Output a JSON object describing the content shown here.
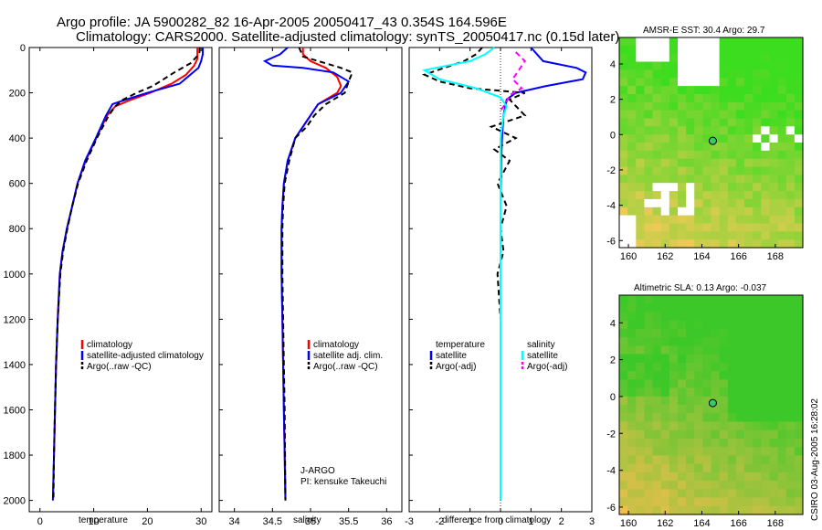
{
  "header": {
    "line1": "Argo profile: JA 5900282_82 16-Apr-2005 20050417_43 0.354S 164.596E",
    "line2": "Climatology: CARS2000. Satellite-adjusted climatology: synTS_20050417.nc (0.15d later)"
  },
  "side_stamp": "CSIRO 03-Aug-2005 16:28:02",
  "colors": {
    "climatology": "#ff0000",
    "satellite": "#0000ff",
    "argo": "#000000",
    "cyan": "#00ffff",
    "magenta": "#ff00ff"
  },
  "chart_data": [
    {
      "id": "temperature",
      "type": "line",
      "xlabel": "temperature",
      "xlim": [
        -2,
        32
      ],
      "ylim": [
        2050,
        0
      ],
      "x_ticks": [
        0,
        10,
        20,
        30
      ],
      "x_tick_labels": [
        "0",
        "10",
        "20",
        "30"
      ],
      "y_ticks": [
        0,
        200,
        400,
        600,
        800,
        1000,
        1200,
        1400,
        1600,
        1800,
        2000
      ],
      "y_tick_labels": [
        "0",
        "200",
        "400",
        "600",
        "800",
        "1000",
        "1200",
        "1400",
        "1600",
        "1800",
        "2000"
      ],
      "legend": [
        "climatology",
        "satellite-adjusted climatology",
        "Argo(..raw -QC)"
      ],
      "series": [
        {
          "name": "climatology",
          "color": "#ff0000",
          "dash": false,
          "x": [
            29.3,
            29.3,
            28.7,
            27.2,
            24.5,
            20.5,
            17.0,
            14.0,
            12.5,
            10.5,
            8.5,
            7.0,
            6.0,
            5.0,
            4.2,
            3.7,
            3.3,
            3.0,
            2.8,
            2.6,
            2.5,
            2.4
          ],
          "y": [
            0,
            50,
            80,
            120,
            160,
            200,
            230,
            260,
            300,
            400,
            500,
            600,
            700,
            800,
            900,
            1000,
            1200,
            1400,
            1600,
            1800,
            1900,
            2000
          ]
        },
        {
          "name": "satellite-adjusted climatology",
          "color": "#0000ff",
          "dash": false,
          "x": [
            30.3,
            30.3,
            30.0,
            29.5,
            26.0,
            20.0,
            16.0,
            13.5,
            12.3,
            10.4,
            8.4,
            7.0,
            6.0,
            5.0,
            4.2,
            3.7,
            3.3,
            3.0,
            2.8,
            2.6,
            2.5,
            2.4
          ],
          "y": [
            0,
            30,
            60,
            90,
            160,
            200,
            230,
            250,
            300,
            400,
            500,
            600,
            700,
            800,
            900,
            1000,
            1200,
            1400,
            1600,
            1800,
            1900,
            2000
          ]
        },
        {
          "name": "Argo(..raw -QC)",
          "color": "#000000",
          "dash": true,
          "x": [
            29.7,
            29.7,
            29.2,
            28.0,
            25.0,
            23.0,
            21.0,
            18.0,
            15.5,
            14.0,
            12.8,
            10.6,
            8.7,
            7.1,
            6.0,
            5.1,
            4.3,
            3.8,
            3.3,
            3.0,
            2.8,
            2.6,
            2.5
          ],
          "y": [
            0,
            20,
            40,
            70,
            110,
            140,
            170,
            200,
            230,
            260,
            300,
            400,
            500,
            600,
            700,
            800,
            900,
            1000,
            1200,
            1400,
            1600,
            1800,
            2000
          ]
        }
      ]
    },
    {
      "id": "salinity",
      "type": "line",
      "xlabel": "salinity",
      "xlim": [
        33.8,
        36.2
      ],
      "ylim": [
        2050,
        0
      ],
      "x_ticks": [
        34,
        34.5,
        35,
        35.5,
        36
      ],
      "x_tick_labels": [
        "34",
        "34.5",
        "35",
        "35.5",
        "36"
      ],
      "legend": [
        "climatology",
        "satellite adj. clim.",
        "Argo(..raw -QC)"
      ],
      "annotation": [
        "J-ARGO",
        "PI: kensuke Takeuchi"
      ],
      "series": [
        {
          "name": "climatology",
          "color": "#ff0000",
          "dash": false,
          "x": [
            34.9,
            34.9,
            35.0,
            35.2,
            35.35,
            35.4,
            35.35,
            35.1,
            35.0,
            34.9,
            34.8,
            34.7,
            34.65,
            34.63,
            34.62,
            34.62,
            34.63,
            34.64,
            34.65,
            34.66,
            34.67
          ],
          "y": [
            0,
            30,
            60,
            90,
            130,
            170,
            200,
            250,
            300,
            350,
            400,
            500,
            600,
            700,
            800,
            1000,
            1200,
            1400,
            1600,
            1800,
            2000
          ]
        },
        {
          "name": "satellite adj. clim.",
          "color": "#0000ff",
          "dash": false,
          "x": [
            34.7,
            34.6,
            34.4,
            34.5,
            34.9,
            35.3,
            35.5,
            35.4,
            35.1,
            35.0,
            34.9,
            34.8,
            34.7,
            34.65,
            34.63,
            34.62,
            34.62,
            34.63,
            34.64,
            34.65,
            34.66,
            34.67
          ],
          "y": [
            0,
            30,
            60,
            80,
            90,
            110,
            150,
            200,
            250,
            300,
            350,
            400,
            500,
            600,
            700,
            800,
            1000,
            1200,
            1400,
            1600,
            1800,
            2000
          ]
        },
        {
          "name": "Argo(..raw -QC)",
          "color": "#000000",
          "dash": true,
          "x": [
            34.85,
            34.9,
            35.2,
            35.4,
            35.55,
            35.5,
            35.45,
            35.2,
            35.05,
            34.95,
            34.8,
            34.72,
            34.66,
            34.64,
            34.63,
            34.63,
            34.64,
            34.65,
            34.66,
            34.67
          ],
          "y": [
            0,
            40,
            70,
            90,
            110,
            150,
            200,
            250,
            300,
            350,
            400,
            500,
            600,
            700,
            800,
            1000,
            1200,
            1400,
            1600,
            2000
          ]
        }
      ]
    },
    {
      "id": "difference",
      "type": "line",
      "xlabel": "difference from climatology",
      "xlim": [
        -3,
        3
      ],
      "ylim": [
        2050,
        0
      ],
      "x_ticks": [
        -3,
        -2,
        -1,
        0,
        1,
        2,
        3
      ],
      "x_tick_labels": [
        "-3",
        "-2",
        "-1",
        "0",
        "1",
        "2",
        "3"
      ],
      "legend_left": [
        "temperature",
        "satellite",
        "Argo(-adj)"
      ],
      "legend_right": [
        "salinity",
        "satellite",
        "Argo(-adj)"
      ],
      "series": [
        {
          "name": "temperature satellite",
          "color": "#0000ff",
          "dash": false,
          "x": [
            1.0,
            1.2,
            1.4,
            2.5,
            2.8,
            2.7,
            1.5,
            0.5,
            0.2,
            0.1,
            0.05,
            0.02,
            0.0,
            0.0,
            0.0,
            0.0,
            0.0,
            0.0
          ],
          "y": [
            0,
            30,
            60,
            90,
            110,
            140,
            170,
            200,
            230,
            300,
            400,
            500,
            700,
            900,
            1200,
            1500,
            1800,
            2000
          ]
        },
        {
          "name": "temperature Argo(-adj)",
          "color": "#000000",
          "dash": true,
          "x": [
            -0.6,
            -0.8,
            -1.2,
            -2.5,
            -2.0,
            -1.0,
            0.8,
            0.3,
            0.8,
            -0.3,
            0.5,
            -0.2,
            0.3,
            -0.1,
            0.2,
            0.0,
            0.1,
            -0.1,
            0.0,
            0.0,
            0.0,
            0.0
          ],
          "y": [
            0,
            30,
            60,
            120,
            150,
            180,
            200,
            230,
            300,
            350,
            400,
            450,
            500,
            600,
            700,
            800,
            900,
            1000,
            1200,
            1500,
            1800,
            2000
          ]
        },
        {
          "name": "salinity satellite",
          "color": "#00ffff",
          "dash": false,
          "x": [
            -0.2,
            -0.5,
            -1.0,
            -2.5,
            -2.0,
            -0.8,
            0.0,
            0.2,
            0.1,
            0.0,
            0.0,
            0.0,
            0.0,
            0.0,
            0.0
          ],
          "y": [
            0,
            30,
            60,
            100,
            140,
            180,
            220,
            260,
            300,
            400,
            600,
            900,
            1200,
            1600,
            2000
          ]
        },
        {
          "name": "salinity Argo(-adj)",
          "color": "#ff00ff",
          "dash": true,
          "x": [
            0.5,
            0.8,
            0.6,
            0.4,
            0.7,
            0.3,
            0.2,
            0.1,
            0.0
          ],
          "y": [
            20,
            60,
            100,
            140,
            180,
            210,
            240,
            260,
            280
          ]
        }
      ]
    },
    {
      "id": "sst_map",
      "type": "heatmap",
      "title": "AMSR-E SST: 30.4 Argo: 29.7",
      "xlim": [
        159.5,
        169.5
      ],
      "ylim": [
        -6.4,
        5.5
      ],
      "x_ticks": [
        160,
        162,
        164,
        166,
        168
      ],
      "x_tick_labels": [
        "160",
        "162",
        "164",
        "166",
        "168"
      ],
      "y_ticks": [
        4,
        2,
        0,
        -2,
        -4,
        -6
      ],
      "y_tick_labels": [
        "4",
        "2",
        "0",
        "-2",
        "-4",
        "-6"
      ],
      "marker": {
        "lon": 164.596,
        "lat": -0.354
      }
    },
    {
      "id": "sla_map",
      "type": "heatmap",
      "title": "Altimetric SLA: 0.13 Argo: -0.037",
      "xlim": [
        159.5,
        169.5
      ],
      "ylim": [
        -6.4,
        5.5
      ],
      "x_ticks": [
        160,
        162,
        164,
        166,
        168
      ],
      "x_tick_labels": [
        "160",
        "162",
        "164",
        "166",
        "168"
      ],
      "y_ticks": [
        4,
        2,
        0,
        -2,
        -4,
        -6
      ],
      "y_tick_labels": [
        "4",
        "2",
        "0",
        "-2",
        "-4",
        "-6"
      ],
      "marker": {
        "lon": 164.596,
        "lat": -0.354
      }
    }
  ]
}
